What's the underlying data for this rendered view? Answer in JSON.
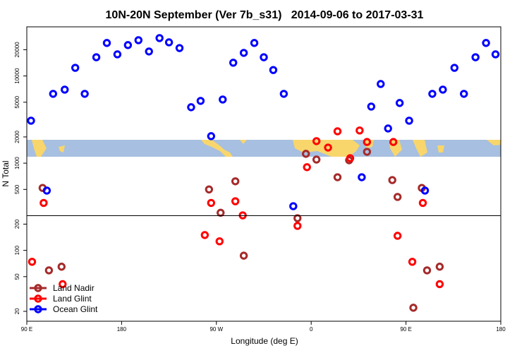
{
  "chart_data": {
    "type": "scatter",
    "title": "10N-20N September (Ver 7b_s31)   2014-09-06 to 2017-03-31",
    "x_label": "Longitude (deg E)",
    "y_label": "N Total",
    "log_y": true,
    "legend": "bottom-left",
    "hline": 250,
    "xlim": [
      90,
      540
    ],
    "xticks": [
      {
        "value": 90,
        "label": "90 E"
      },
      180,
      {
        "value": 270,
        "label": "90 W"
      },
      {
        "value": 360,
        "label": "0"
      },
      {
        "value": 450,
        "label": "90 E"
      },
      {
        "value": 540,
        "label": "180"
      }
    ],
    "ylim": [
      15.4,
      36600
    ],
    "yticks": [
      20,
      50,
      100,
      200,
      500,
      1000,
      2000,
      5000,
      10000,
      20000
    ],
    "series": [
      {
        "name": "Land Nadir",
        "color": "#a52a2a",
        "x": [
          105,
          111,
          123,
          263,
          274,
          288,
          296,
          347,
          355,
          365,
          385,
          396,
          413,
          437,
          442,
          457,
          465,
          470,
          482
        ],
        "values": [
          520,
          59,
          65,
          500,
          270,
          620,
          87,
          234,
          1280,
          1100,
          690,
          1080,
          1350,
          640,
          410,
          22,
          520,
          59,
          65
        ]
      },
      {
        "name": "Land Glint",
        "color": "#ff0000",
        "x": [
          95,
          106,
          124,
          259,
          265,
          273,
          288,
          295,
          347,
          356,
          365,
          376,
          385,
          397,
          406,
          413,
          438,
          442,
          456,
          466,
          482
        ],
        "values": [
          74,
          350,
          41,
          150,
          350,
          127,
          366,
          252,
          191,
          900,
          1790,
          1510,
          2320,
          1140,
          2370,
          1750,
          1750,
          147,
          74,
          350,
          41
        ]
      },
      {
        "name": "Ocean Glint",
        "color": "#0000ff",
        "x": [
          94,
          109,
          115,
          126,
          136,
          145,
          156,
          166,
          176,
          186,
          196,
          206,
          216,
          225,
          235,
          246,
          255,
          265,
          276,
          286,
          296,
          306,
          315,
          324,
          334,
          343,
          408,
          417,
          426,
          433,
          444,
          453,
          468,
          475,
          485,
          496,
          505,
          516,
          526,
          535
        ],
        "values": [
          3070,
          485,
          6240,
          6970,
          12400,
          6240,
          16400,
          23900,
          17700,
          22600,
          25700,
          19100,
          27200,
          24300,
          20900,
          4380,
          5180,
          2040,
          5370,
          14200,
          18400,
          23900,
          16400,
          11700,
          6240,
          321,
          690,
          4460,
          8090,
          2500,
          4900,
          3070,
          485,
          6240,
          6970,
          12400,
          6240,
          16400,
          23900,
          17700
        ]
      }
    ]
  }
}
